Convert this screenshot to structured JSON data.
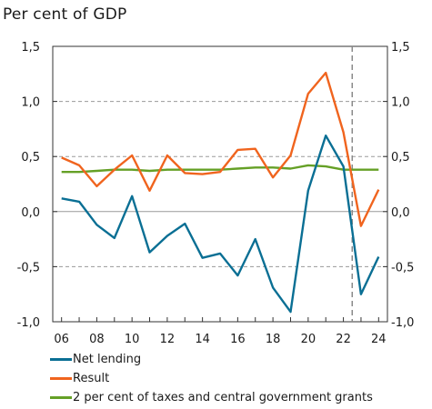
{
  "chart_data": {
    "type": "line",
    "unit_label": "Per cent of GDP",
    "x": [
      6,
      7,
      8,
      9,
      10,
      11,
      12,
      13,
      14,
      15,
      16,
      17,
      18,
      19,
      20,
      21,
      22,
      23,
      24
    ],
    "xtick_labels": [
      "06",
      "08",
      "10",
      "12",
      "14",
      "16",
      "18",
      "20",
      "22",
      "24"
    ],
    "xtick_values": [
      6,
      8,
      10,
      12,
      14,
      16,
      18,
      20,
      22,
      24
    ],
    "ytick_labels": [
      "1,5",
      "1,0",
      "0,5",
      "0,0",
      "-0,5",
      "-1,0"
    ],
    "ytick_values": [
      1.5,
      1.0,
      0.5,
      0.0,
      -0.5,
      -1.0
    ],
    "ylim": [
      -1.0,
      1.5
    ],
    "xlim": [
      5.5,
      24.5
    ],
    "grid": "horizontal dashed",
    "forecast_divider_x": 22.5,
    "series": [
      {
        "name": "Net lending",
        "color": "#0a6f94",
        "values": [
          0.12,
          0.09,
          -0.12,
          -0.24,
          0.14,
          -0.37,
          -0.22,
          -0.11,
          -0.42,
          -0.38,
          -0.58,
          -0.25,
          -0.69,
          -0.91,
          0.19,
          0.69,
          0.41,
          -0.75,
          -0.41
        ]
      },
      {
        "name": "Result",
        "color": "#f0641e",
        "values": [
          0.49,
          0.42,
          0.23,
          0.38,
          0.51,
          0.19,
          0.51,
          0.35,
          0.34,
          0.36,
          0.56,
          0.57,
          0.31,
          0.51,
          1.07,
          1.26,
          0.72,
          -0.13,
          0.2
        ]
      },
      {
        "name": "2 per cent of taxes and central government grants",
        "color": "#65a026",
        "values": [
          0.36,
          0.36,
          0.37,
          0.38,
          0.38,
          0.37,
          0.38,
          0.38,
          0.38,
          0.38,
          0.39,
          0.4,
          0.4,
          0.39,
          0.42,
          0.41,
          0.38,
          0.38,
          0.38
        ]
      }
    ],
    "legend_position": "bottom"
  }
}
